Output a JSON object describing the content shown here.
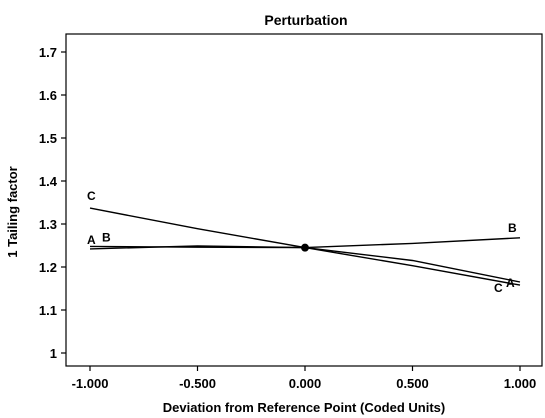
{
  "chart_data": {
    "type": "line",
    "title": "Perturbation",
    "xlabel": "Deviation from Reference Point (Coded Units)",
    "ylabel": "1 Tailing factor",
    "xlim": [
      -1.0,
      1.0
    ],
    "ylim": [
      0.975,
      1.76
    ],
    "xticks": [
      -1.0,
      -0.5,
      0.0,
      0.5,
      1.0
    ],
    "xtick_labels": [
      "-1.000",
      "-0.500",
      "0.000",
      "0.500",
      "1.000"
    ],
    "yticks": [
      1.0,
      1.1,
      1.2,
      1.3,
      1.4,
      1.5,
      1.6,
      1.7
    ],
    "ytick_labels": [
      "1",
      "1.1",
      "1.2",
      "1.3",
      "1.4",
      "1.5",
      "1.6",
      "1.7"
    ],
    "reference_point": {
      "x": 0.0,
      "y": 1.245
    },
    "series": [
      {
        "name": "A",
        "x": [
          -1.0,
          -0.5,
          0.0,
          0.5,
          1.0
        ],
        "y": [
          1.242,
          1.249,
          1.245,
          1.215,
          1.165
        ]
      },
      {
        "name": "B",
        "x": [
          -1.0,
          -0.5,
          0.0,
          0.5,
          1.0
        ],
        "y": [
          1.248,
          1.246,
          1.245,
          1.255,
          1.268
        ]
      },
      {
        "name": "C",
        "x": [
          -1.0,
          -0.5,
          0.0,
          0.5,
          1.0
        ],
        "y": [
          1.337,
          1.289,
          1.245,
          1.203,
          1.158
        ]
      }
    ],
    "grid": false,
    "colors": {
      "line": "#000000",
      "frame": "#000000",
      "background": "#ffffff"
    }
  }
}
